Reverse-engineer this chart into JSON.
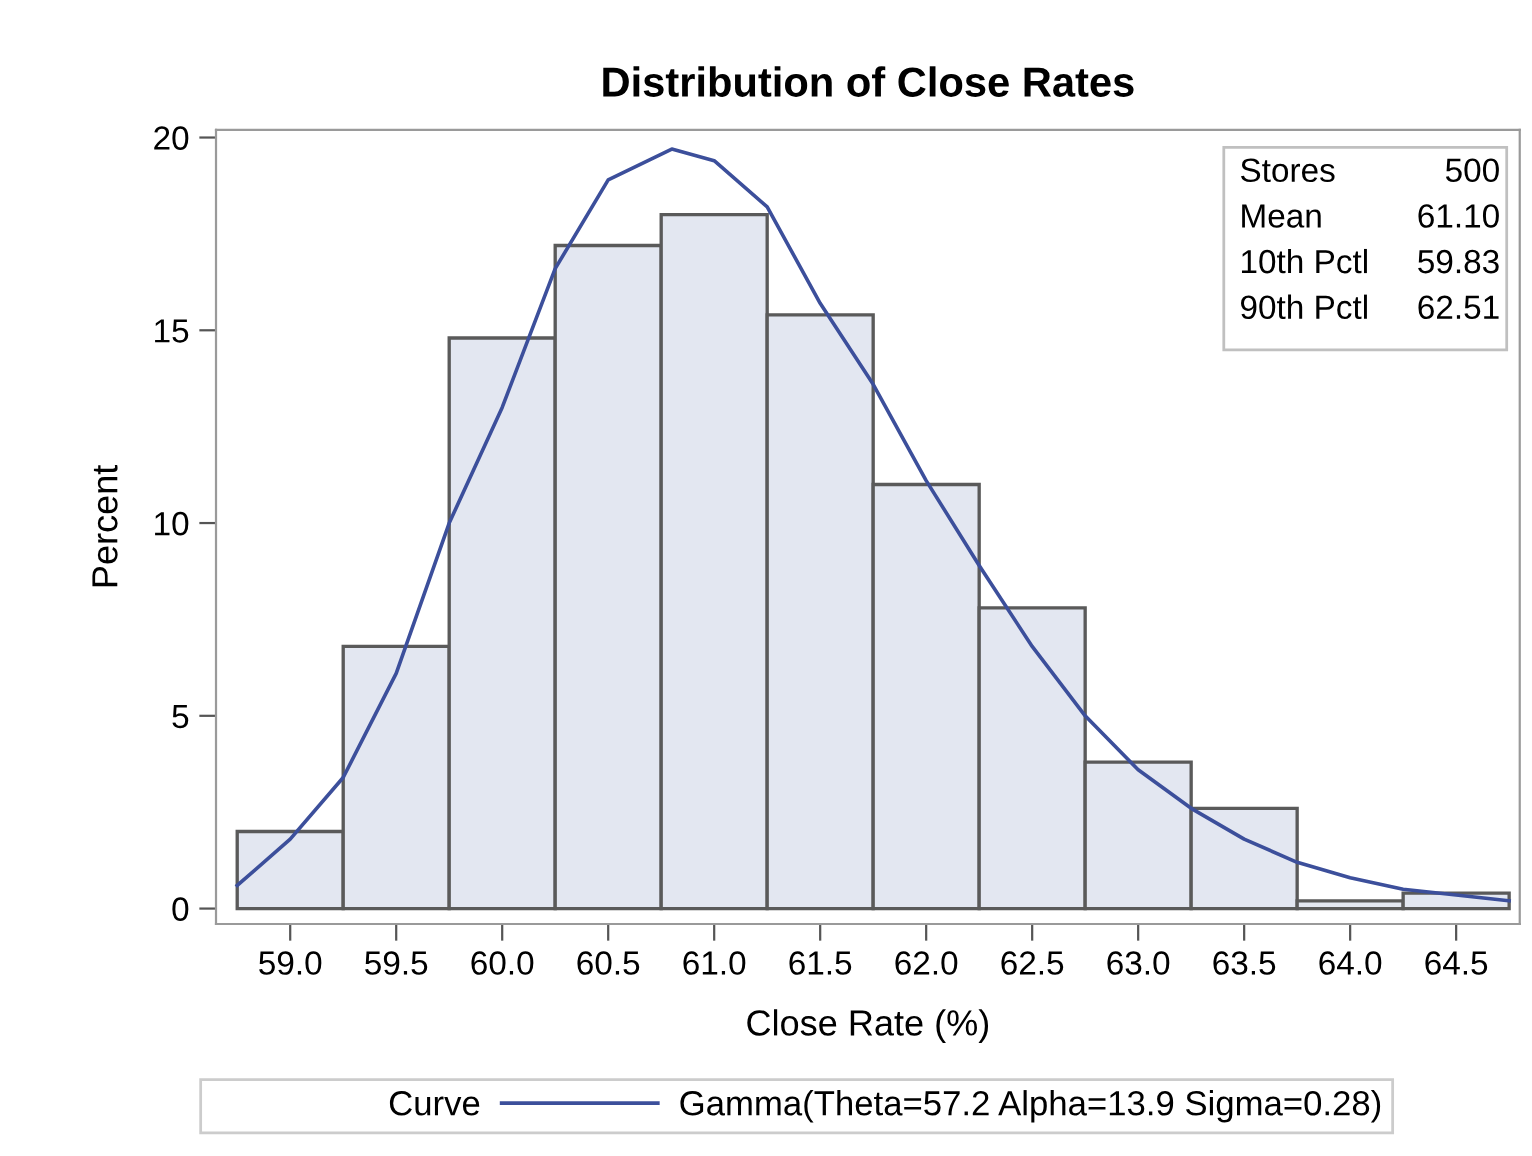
{
  "chart_data": {
    "type": "histogram",
    "title": "Distribution of Close Rates",
    "xlabel": "Close Rate (%)",
    "ylabel": "Percent",
    "legend_title": "Curve",
    "bins": [
      58.75,
      59.25,
      59.75,
      60.25,
      60.75,
      61.25,
      61.75,
      62.25,
      62.75,
      63.25,
      63.75,
      64.25,
      64.75
    ],
    "values": [
      2.0,
      6.8,
      14.8,
      17.2,
      18.0,
      15.4,
      11.0,
      7.8,
      3.8,
      2.6,
      0.2,
      0.4
    ],
    "color": "#e3e7f1",
    "series": [
      {
        "type": "line",
        "name": "Gamma(Theta=57.2 Alpha=13.9 Sigma=0.28)",
        "color": "#3c4f9b",
        "x": [
          58.75,
          59.0,
          59.25,
          59.5,
          59.75,
          60.0,
          60.25,
          60.5,
          60.8,
          61.0,
          61.25,
          61.5,
          61.75,
          62.0,
          62.25,
          62.5,
          62.75,
          63.0,
          63.25,
          63.5,
          63.75,
          64.0,
          64.25,
          64.5,
          64.75
        ],
        "values": [
          0.6,
          1.8,
          3.4,
          6.1,
          10.0,
          13.0,
          16.6,
          18.9,
          19.7,
          19.4,
          18.2,
          15.7,
          13.6,
          11.1,
          8.9,
          6.8,
          5.0,
          3.6,
          2.6,
          1.8,
          1.2,
          0.8,
          0.5,
          0.35,
          0.2
        ]
      }
    ],
    "annotations": [
      "Stores",
      "500",
      "Mean",
      "61.10",
      "10th Pctl",
      "59.83",
      "90th Pctl",
      "62.51"
    ],
    "xlim": [
      58.65,
      64.8
    ],
    "ylim": [
      -0.4,
      20.2
    ],
    "xticks": [
      {
        "value": 59,
        "label": "59.0"
      },
      59.5,
      {
        "value": 60,
        "label": "60.0"
      },
      60.5,
      {
        "value": 61,
        "label": "61.0"
      },
      61.5,
      {
        "value": 62,
        "label": "62.0"
      },
      62.5,
      {
        "value": 63,
        "label": "63.0"
      },
      63.5,
      {
        "value": 64,
        "label": "64.0"
      },
      64.5
    ],
    "yticks": [
      0,
      5,
      10,
      15,
      20
    ],
    "grid": false,
    "legend": "bottom"
  }
}
